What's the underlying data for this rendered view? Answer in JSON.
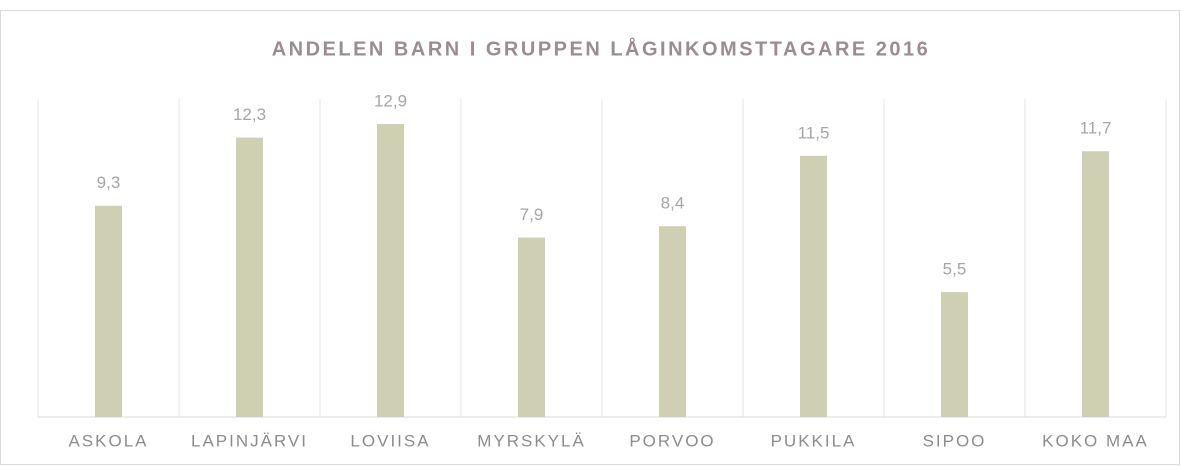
{
  "chart_data": {
    "type": "bar",
    "title": "ANDELEN BARN I GRUPPEN LÅGINKOMSTTAGARE 2016",
    "categories": [
      "ASKOLA",
      "LAPINJÄRVI",
      "LOVIISA",
      "MYRSKYLÄ",
      "PORVOO",
      "PUKKILA",
      "SIPOO",
      "KOKO MAA"
    ],
    "values": [
      9.3,
      12.3,
      12.9,
      7.9,
      8.4,
      11.5,
      5.5,
      11.7
    ],
    "value_labels": [
      "9,3",
      "12,3",
      "12,9",
      "7,9",
      "8,4",
      "11,5",
      "5,5",
      "11,7"
    ],
    "color": "#cfd0b3",
    "ylim": [
      0,
      14
    ]
  }
}
